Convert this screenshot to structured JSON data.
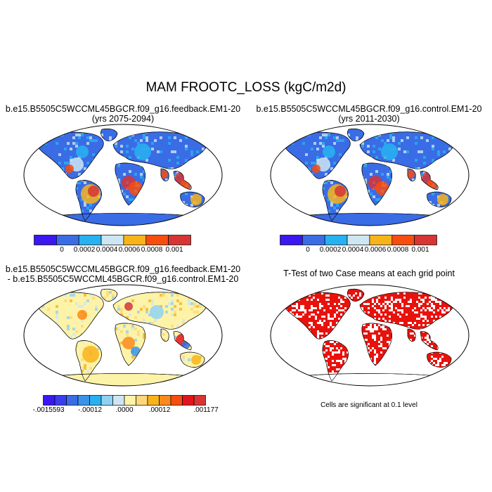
{
  "main_title": "MAM FROOTC_LOSS (kgC/m2d)",
  "panels": {
    "feedback": {
      "title_line1": "b.e15.B5505C5WCCML45BGCR.f09_g16.feedback.EM1-20",
      "title_line2": "(yrs 2075-2094)"
    },
    "control": {
      "title_line1": "b.e15.B5505C5WCCML45BGCR.f09_g16.control.EM1-20",
      "title_line2": "(yrs 2011-2030)"
    },
    "difference": {
      "title_line1": "b.e15.B5505C5WCCML45BGCR.f09_g16.feedback.EM1-20",
      "title_line2": "- b.e15.B5505C5WCCML45BGCR.f09_g16.control.EM1-20"
    },
    "ttest": {
      "title": "T-Test of two Case means at each grid point",
      "note": "Cells are significant at 0.1 level"
    }
  },
  "colorbars": {
    "absolute": {
      "colors": [
        "#3b17f0",
        "#3a6ce6",
        "#28b1f0",
        "#cde6f2",
        "#f9b31a",
        "#f74d0f",
        "#d63534"
      ],
      "labels": [
        "0",
        "0.0002",
        "0.0004",
        "0.0006",
        "0.0008",
        "0.001"
      ]
    },
    "difference": {
      "colors": [
        "#3b17f0",
        "#3a3cf0",
        "#3a6ce6",
        "#3a93e8",
        "#28b1f0",
        "#8fd2f2",
        "#cde6f2",
        "#fff3a8",
        "#fdd77a",
        "#f9b31a",
        "#fb8a1a",
        "#f74d0f",
        "#e0151d",
        "#d63534"
      ],
      "labels": [
        "-.0015593",
        "-.00012",
        ".0000",
        ".00012",
        ".001177"
      ]
    }
  },
  "map_colors": {
    "ocean": "#ffffff",
    "land_absolute": "#3a6ce6",
    "land_difference": "#fdf3a8",
    "land_ttest": "#ffffff",
    "significant": "#e8120d",
    "antarctica_difference": "#fdf3a8"
  },
  "legend_colors_note": "map fills"
}
